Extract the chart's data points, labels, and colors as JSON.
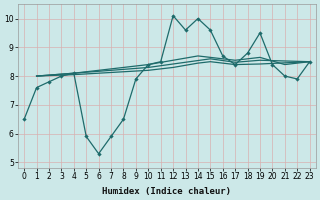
{
  "xlabel": "Humidex (Indice chaleur)",
  "bg_color": "#cce8e8",
  "grid_color": "#aacccc",
  "line_color": "#1e6b6b",
  "xlim": [
    -0.5,
    23.5
  ],
  "ylim": [
    4.8,
    10.5
  ],
  "yticks": [
    5,
    6,
    7,
    8,
    9,
    10
  ],
  "xtick_labels": [
    "0",
    "1",
    "2",
    "3",
    "4",
    "5",
    "6",
    "7",
    "8",
    "9",
    "10",
    "11",
    "12",
    "13",
    "14",
    "15",
    "16",
    "17",
    "18",
    "19",
    "20",
    "21",
    "22",
    "23"
  ],
  "y_main": [
    6.5,
    7.6,
    7.8,
    8.0,
    8.1,
    5.9,
    5.3,
    5.9,
    6.5,
    7.9,
    8.4,
    8.5,
    10.1,
    9.6,
    10.0,
    9.6,
    8.7,
    8.4,
    8.8,
    9.5,
    8.4,
    8.0,
    7.9,
    8.5
  ],
  "trend1_x": [
    1,
    4,
    10,
    12,
    14,
    17,
    19,
    21,
    23
  ],
  "trend1_y": [
    8.0,
    8.1,
    8.4,
    8.55,
    8.7,
    8.55,
    8.65,
    8.4,
    8.5
  ],
  "trend2_x": [
    1,
    4,
    10,
    12,
    15,
    17,
    19,
    23
  ],
  "trend2_y": [
    8.0,
    8.1,
    8.3,
    8.42,
    8.6,
    8.48,
    8.55,
    8.5
  ],
  "trend3_x": [
    1,
    4,
    10,
    12,
    14,
    15,
    17,
    19,
    23
  ],
  "trend3_y": [
    8.0,
    8.05,
    8.2,
    8.3,
    8.45,
    8.5,
    8.4,
    8.42,
    8.5
  ]
}
